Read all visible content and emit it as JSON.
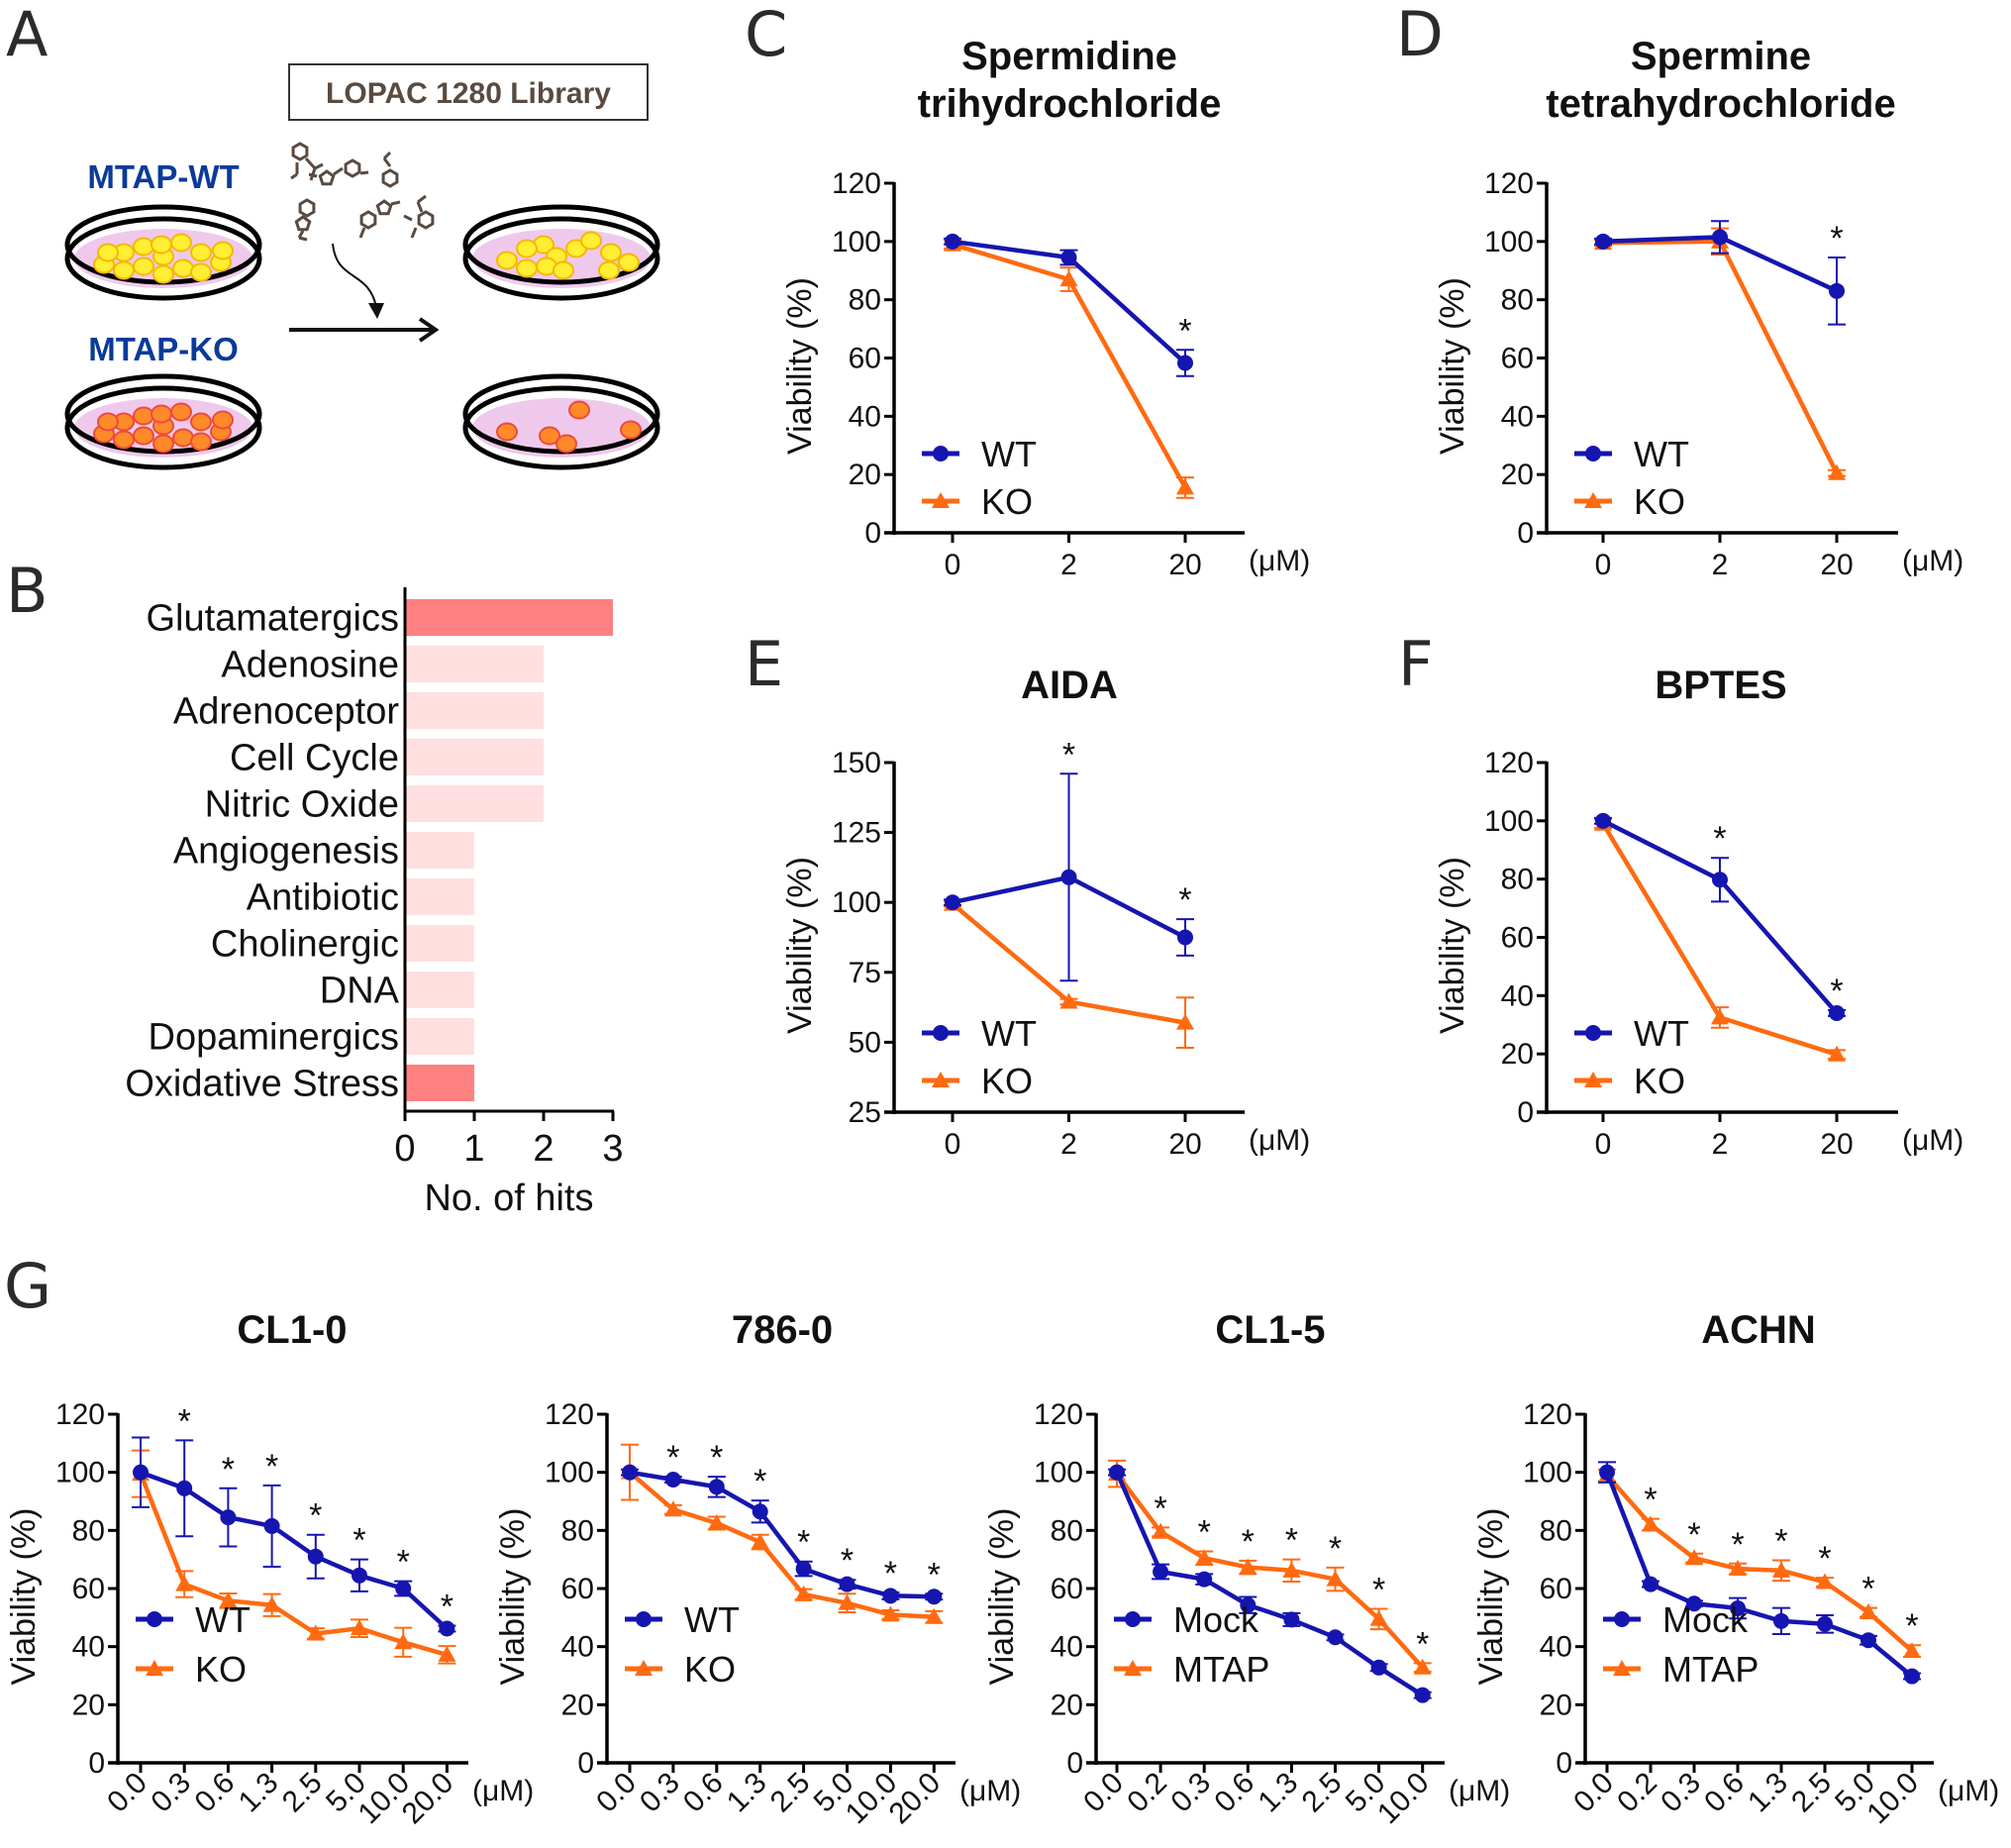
{
  "colors": {
    "wt": "#1515b0",
    "ko": "#ff6a10",
    "bar_highlight": "#ff8080",
    "bar_normal": "#ffdfe0",
    "axis": "#000000",
    "mtap_label": "#0a3a9a",
    "lopac_text": "#5a4a40",
    "dish_fill": "#efc9ec",
    "cell_yellow": "#ffee33",
    "cell_yellow_edge": "#f5b800",
    "cell_orange": "#ff8a2a",
    "cell_orange_edge": "#ee4a3a",
    "molecule": "#5a4a40"
  },
  "panel_labels": [
    "A",
    "B",
    "C",
    "D",
    "E",
    "F",
    "G"
  ],
  "schematic": {
    "library_label": "LOPAC 1280 Library",
    "wt_label": "MTAP-WT",
    "ko_label": "MTAP-KO",
    "wt_cells_before": 15,
    "ko_cells_before": 15,
    "wt_cells_after": 12,
    "ko_cells_after": 5
  },
  "chart_data": [
    {
      "id": "B",
      "type": "bar",
      "orientation": "horizontal",
      "title": "",
      "xlabel": "No. of hits",
      "ylabel": "",
      "xlim": [
        0,
        3
      ],
      "xticks": [
        "0",
        "1",
        "2",
        "3"
      ],
      "categories": [
        "Glutamatergics",
        "Adenosine",
        "Adrenoceptor",
        "Cell Cycle",
        "Nitric Oxide",
        "Angiogenesis",
        "Antibiotic",
        "Cholinergic",
        "DNA",
        "Dopaminergics",
        "Oxidative Stress"
      ],
      "values": [
        3,
        2,
        2,
        2,
        2,
        1,
        1,
        1,
        1,
        1,
        1
      ],
      "highlighted": [
        true,
        false,
        false,
        false,
        false,
        false,
        false,
        false,
        false,
        false,
        true
      ]
    },
    {
      "id": "C",
      "type": "line",
      "title_lines": [
        "Spermidine",
        "trihydrochloride"
      ],
      "ylabel": "Viability (%)",
      "xunit": "(μM)",
      "categories": [
        "0",
        "2",
        "20"
      ],
      "ylim": [
        0,
        120
      ],
      "yticks": [
        0,
        20,
        40,
        60,
        80,
        100,
        120
      ],
      "legend_position": "bottom-left",
      "series": [
        {
          "name": "WT",
          "marker": "circle",
          "values": [
            100,
            94.5,
            58.3
          ],
          "errors": [
            1,
            2.5,
            4.5
          ]
        },
        {
          "name": "KO",
          "marker": "triangle",
          "values": [
            99,
            87,
            15.5
          ],
          "errors": [
            1.5,
            4,
            3.5
          ]
        }
      ],
      "significance": [
        false,
        false,
        true
      ]
    },
    {
      "id": "D",
      "type": "line",
      "title_lines": [
        "Spermine",
        "tetrahydrochloride"
      ],
      "ylabel": "Viability (%)",
      "xunit": "(μM)",
      "categories": [
        "0",
        "2",
        "20"
      ],
      "ylim": [
        0,
        120
      ],
      "yticks": [
        0,
        20,
        40,
        60,
        80,
        100,
        120
      ],
      "legend_position": "bottom-left",
      "series": [
        {
          "name": "WT",
          "marker": "circle",
          "values": [
            100,
            101.5,
            83
          ],
          "errors": [
            1,
            5.5,
            11.5
          ]
        },
        {
          "name": "KO",
          "marker": "triangle",
          "values": [
            99.5,
            100,
            20.5
          ],
          "errors": [
            1,
            4.5,
            1
          ]
        }
      ],
      "significance": [
        false,
        false,
        true
      ]
    },
    {
      "id": "E",
      "type": "line",
      "title_lines": [
        "AIDA"
      ],
      "ylabel": "Viability (%)",
      "xunit": "(μM)",
      "categories": [
        "0",
        "2",
        "20"
      ],
      "ylim": [
        25,
        150
      ],
      "yticks": [
        25,
        50,
        75,
        100,
        125,
        150
      ],
      "legend_position": "bottom-left",
      "series": [
        {
          "name": "WT",
          "marker": "circle",
          "values": [
            100,
            109,
            87.5
          ],
          "errors": [
            1,
            37,
            6.5
          ]
        },
        {
          "name": "KO",
          "marker": "triangle",
          "values": [
            99.5,
            64.5,
            57
          ],
          "errors": [
            1,
            1,
            9
          ]
        }
      ],
      "significance": [
        false,
        true,
        true
      ]
    },
    {
      "id": "F",
      "type": "line",
      "title_lines": [
        "BPTES"
      ],
      "ylabel": "Viability (%)",
      "xunit": "(μM)",
      "categories": [
        "0",
        "2",
        "20"
      ],
      "ylim": [
        0,
        120
      ],
      "yticks": [
        0,
        20,
        40,
        60,
        80,
        100,
        120
      ],
      "legend_position": "bottom-left",
      "series": [
        {
          "name": "WT",
          "marker": "circle",
          "values": [
            100,
            79.8,
            34
          ],
          "errors": [
            1,
            7.5,
            1
          ]
        },
        {
          "name": "KO",
          "marker": "triangle",
          "values": [
            99,
            32.5,
            19.8
          ],
          "errors": [
            1.5,
            3.5,
            1.5
          ]
        }
      ],
      "significance": [
        false,
        true,
        true
      ]
    },
    {
      "id": "G1",
      "type": "line",
      "title_lines": [
        "CL1-0"
      ],
      "ylabel": "Viability (%)",
      "xunit": "(μM)",
      "categories": [
        "0.0",
        "0.3",
        "0.6",
        "1.3",
        "2.5",
        "5.0",
        "10.0",
        "20.0"
      ],
      "ylim": [
        0,
        120
      ],
      "yticks": [
        0,
        20,
        40,
        60,
        80,
        100,
        120
      ],
      "legend_position": "bottom-left",
      "series": [
        {
          "name": "WT",
          "marker": "circle",
          "values": [
            100,
            94.5,
            84.5,
            81.5,
            71,
            64.5,
            60,
            46.2
          ],
          "errors": [
            12,
            16.5,
            10,
            14,
            7.5,
            5.5,
            2.5,
            1
          ]
        },
        {
          "name": "KO",
          "marker": "triangle",
          "values": [
            99.5,
            61.5,
            55.8,
            54.3,
            44.5,
            46.3,
            41.5,
            37.2
          ],
          "errors": [
            8,
            4.5,
            2.5,
            3.8,
            1.8,
            3,
            5,
            3
          ]
        }
      ],
      "significance": [
        false,
        true,
        true,
        true,
        true,
        true,
        true,
        true
      ]
    },
    {
      "id": "G2",
      "type": "line",
      "title_lines": [
        "786-0"
      ],
      "ylabel": "Viability (%)",
      "xunit": "(μM)",
      "categories": [
        "0.0",
        "0.3",
        "0.6",
        "1.3",
        "2.5",
        "5.0",
        "10.0",
        "20.0"
      ],
      "ylim": [
        0,
        120
      ],
      "yticks": [
        0,
        20,
        40,
        60,
        80,
        100,
        120
      ],
      "legend_position": "bottom-left",
      "series": [
        {
          "name": "WT",
          "marker": "circle",
          "values": [
            100,
            97.5,
            95,
            86.5,
            66.8,
            61.5,
            57.5,
            57.2
          ],
          "errors": [
            1,
            1,
            3.5,
            3.8,
            2.5,
            1.5,
            1.2,
            1
          ]
        },
        {
          "name": "KO",
          "marker": "triangle",
          "values": [
            100,
            87.2,
            82.5,
            76,
            58,
            55,
            51,
            50.2
          ],
          "errors": [
            9.5,
            1.5,
            2.2,
            2.5,
            1.8,
            3.2,
            1.5,
            2
          ]
        }
      ],
      "significance": [
        false,
        true,
        true,
        true,
        true,
        true,
        true,
        true
      ]
    },
    {
      "id": "G3",
      "type": "line",
      "title_lines": [
        "CL1-5"
      ],
      "ylabel": "Viability (%)",
      "xunit": "(μM)",
      "categories": [
        "0.0",
        "0.2",
        "0.3",
        "0.6",
        "1.3",
        "2.5",
        "5.0",
        "10.0"
      ],
      "ylim": [
        0,
        120
      ],
      "yticks": [
        0,
        20,
        40,
        60,
        80,
        100,
        120
      ],
      "legend_position": "bottom-left",
      "series": [
        {
          "name": "Mock",
          "marker": "circle",
          "values": [
            100,
            65.8,
            63.2,
            54.3,
            49.3,
            43.2,
            32.8,
            23.3
          ],
          "errors": [
            1,
            2.5,
            1.8,
            2.8,
            2.2,
            1,
            1.2,
            1
          ]
        },
        {
          "name": "MTAP",
          "marker": "triangle",
          "values": [
            99.5,
            79.5,
            70.5,
            67.3,
            66.2,
            63.2,
            49.5,
            32.8
          ],
          "errors": [
            4.5,
            1.5,
            2.3,
            2.3,
            3.8,
            4,
            3.5,
            1.5
          ]
        }
      ],
      "significance": [
        false,
        true,
        true,
        true,
        true,
        true,
        true,
        true
      ]
    },
    {
      "id": "G4",
      "type": "line",
      "title_lines": [
        "ACHN"
      ],
      "ylabel": "Viability (%)",
      "xunit": "(μM)",
      "categories": [
        "0.0",
        "0.2",
        "0.3",
        "0.6",
        "1.3",
        "2.5",
        "5.0",
        "10.0"
      ],
      "ylim": [
        0,
        120
      ],
      "yticks": [
        0,
        20,
        40,
        60,
        80,
        100,
        120
      ],
      "legend_position": "bottom-left",
      "series": [
        {
          "name": "Mock",
          "marker": "circle",
          "values": [
            100,
            61.5,
            54.8,
            53.2,
            48.8,
            47.8,
            42.2,
            29.8
          ],
          "errors": [
            3.5,
            1,
            1,
            3.5,
            4.5,
            3,
            1.5,
            1
          ]
        },
        {
          "name": "MTAP",
          "marker": "triangle",
          "values": [
            99,
            82,
            70.5,
            66.8,
            66.2,
            62.2,
            51.8,
            38.5
          ],
          "errors": [
            2,
            2,
            1.5,
            1.8,
            3.5,
            1.5,
            1.5,
            2
          ]
        }
      ],
      "significance": [
        false,
        true,
        true,
        true,
        true,
        true,
        true,
        true
      ]
    }
  ]
}
